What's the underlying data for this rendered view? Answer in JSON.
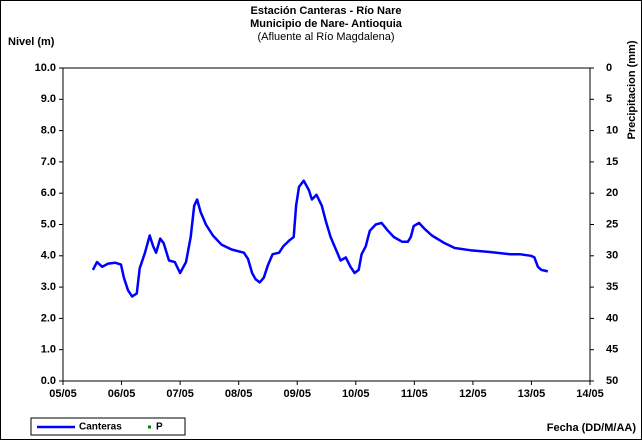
{
  "chart_data": {
    "type": "line",
    "title": "Estación Canteras - Río Nare",
    "subtitle": "Municipio de Nare- Antioquia",
    "annotation": "(Afluente al Río Magdalena)",
    "ylabel": "Nivel (m)",
    "y2label": "Precipitacion (mm)",
    "xlabel": "Fecha (DD/M/AA)",
    "xlim": [
      0,
      9
    ],
    "xticks": [
      {
        "value": 0,
        "label": "05/05"
      },
      {
        "value": 1,
        "label": "06/05"
      },
      {
        "value": 2,
        "label": "07/05"
      },
      {
        "value": 3,
        "label": "08/05"
      },
      {
        "value": 4,
        "label": "09/05"
      },
      {
        "value": 5,
        "label": "10/05"
      },
      {
        "value": 6,
        "label": "11/05"
      },
      {
        "value": 7,
        "label": "12/05"
      },
      {
        "value": 8,
        "label": "13/05"
      },
      {
        "value": 9,
        "label": "14/05"
      }
    ],
    "ylim": [
      0,
      10
    ],
    "yticks": [
      {
        "value": 0,
        "label": "0.0"
      },
      {
        "value": 1,
        "label": "1.0"
      },
      {
        "value": 2,
        "label": "2.0"
      },
      {
        "value": 3,
        "label": "3.0"
      },
      {
        "value": 4,
        "label": "4.0"
      },
      {
        "value": 5,
        "label": "5.0"
      },
      {
        "value": 6,
        "label": "6.0"
      },
      {
        "value": 7,
        "label": "7.0"
      },
      {
        "value": 8,
        "label": "8.0"
      },
      {
        "value": 9,
        "label": "9.0"
      },
      {
        "value": 10,
        "label": "10.0"
      }
    ],
    "y2lim": [
      50,
      0
    ],
    "y2ticks": [
      0,
      5,
      10,
      15,
      20,
      25,
      30,
      35,
      40,
      45,
      50
    ],
    "grid": false,
    "legend": "bottom-left",
    "series": [
      {
        "name": "Canteras",
        "color": "#0000ff",
        "x": [
          0.51,
          0.58,
          0.67,
          0.77,
          0.89,
          0.99,
          1.04,
          1.11,
          1.18,
          1.26,
          1.31,
          1.4,
          1.48,
          1.54,
          1.59,
          1.66,
          1.72,
          1.81,
          1.91,
          2.0,
          2.1,
          2.18,
          2.24,
          2.29,
          2.35,
          2.44,
          2.56,
          2.71,
          2.88,
          3.09,
          3.16,
          3.23,
          3.29,
          3.36,
          3.43,
          3.5,
          3.58,
          3.69,
          3.76,
          3.87,
          3.94,
          3.98,
          4.03,
          4.11,
          4.2,
          4.25,
          4.33,
          4.42,
          4.49,
          4.57,
          4.66,
          4.74,
          4.83,
          4.91,
          4.98,
          5.05,
          5.1,
          5.17,
          5.24,
          5.34,
          5.44,
          5.55,
          5.65,
          5.79,
          5.89,
          5.94,
          5.99,
          6.08,
          6.18,
          6.3,
          6.52,
          6.69,
          6.95,
          7.29,
          7.63,
          7.8,
          7.99,
          8.05,
          8.11,
          8.17,
          8.28
        ],
        "values": [
          3.55,
          3.8,
          3.65,
          3.75,
          3.78,
          3.72,
          3.3,
          2.9,
          2.7,
          2.8,
          3.6,
          4.1,
          4.65,
          4.3,
          4.1,
          4.55,
          4.4,
          3.85,
          3.8,
          3.45,
          3.8,
          4.6,
          5.6,
          5.8,
          5.4,
          5.0,
          4.65,
          4.35,
          4.2,
          4.1,
          3.9,
          3.45,
          3.25,
          3.15,
          3.3,
          3.7,
          4.05,
          4.1,
          4.3,
          4.5,
          4.6,
          5.6,
          6.2,
          6.4,
          6.1,
          5.8,
          5.95,
          5.6,
          5.1,
          4.6,
          4.2,
          3.85,
          3.95,
          3.65,
          3.45,
          3.55,
          4.05,
          4.3,
          4.8,
          5.0,
          5.05,
          4.8,
          4.6,
          4.45,
          4.45,
          4.6,
          4.95,
          5.05,
          4.85,
          4.65,
          4.4,
          4.25,
          4.18,
          4.12,
          4.05,
          4.05,
          4.0,
          3.95,
          3.65,
          3.55,
          3.5
        ]
      },
      {
        "name": "P",
        "color": "#008000",
        "axis": "y2",
        "x": [],
        "values": []
      }
    ]
  }
}
